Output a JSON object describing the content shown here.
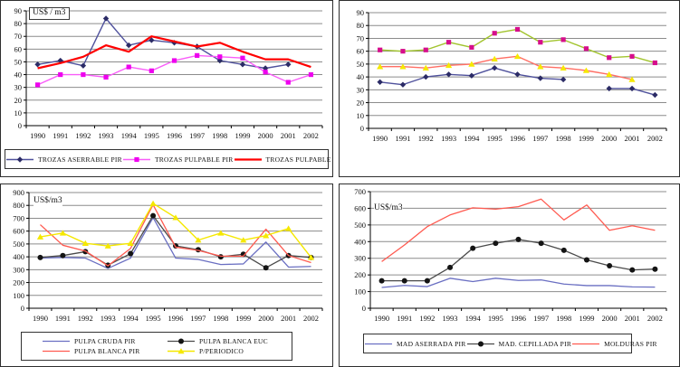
{
  "page": {
    "background": "#ffffff",
    "grid_color": "#8c8c8c",
    "axis_color": "#000000"
  },
  "chart_data": [
    {
      "id": "trozas",
      "type": "line",
      "unit_label": "US$ / m3",
      "categories": [
        "1990",
        "1991",
        "1992",
        "1993",
        "1994",
        "1995",
        "1996",
        "1997",
        "1998",
        "1999",
        "2000",
        "2001",
        "2002"
      ],
      "ylim": [
        0,
        90
      ],
      "ystep": 10,
      "grid": true,
      "legend_position": "bottom",
      "series": [
        {
          "name": "TROZAS ASERRABLE PIR",
          "line_color": "#4f519c",
          "line_width": 1.4,
          "marker": "diamond",
          "marker_color": "#2b2b66",
          "values": [
            48,
            51,
            47,
            84,
            63,
            67,
            65,
            62,
            51,
            48,
            45,
            48,
            null
          ]
        },
        {
          "name": "TROZAS PULPABLE PIR",
          "line_color": "#f95df9",
          "line_width": 1.4,
          "marker": "square",
          "marker_color": "#ee00ee",
          "values": [
            32,
            40,
            40,
            38,
            46,
            43,
            51,
            55,
            54,
            53,
            42,
            34,
            40
          ]
        },
        {
          "name": "TROZAS PULPABLE EUC",
          "line_color": "#ff0000",
          "line_width": 2.2,
          "marker": "none",
          "values": [
            45,
            49,
            54,
            63,
            58,
            70,
            66,
            62,
            65,
            58,
            52,
            52,
            46
          ]
        }
      ]
    },
    {
      "id": "top-right",
      "type": "line",
      "categories": [
        "1990",
        "1991",
        "1992",
        "1993",
        "1994",
        "1995",
        "1996",
        "1997",
        "1998",
        "1999",
        "2000",
        "2001",
        "2002"
      ],
      "ylim": [
        0,
        90
      ],
      "ystep": 10,
      "grid": true,
      "legend_position": "none",
      "series": [
        {
          "name": "",
          "line_color": "#a2c42e",
          "line_width": 1.4,
          "marker": "square",
          "marker_color": "#d60e8c",
          "values": [
            61,
            60,
            61,
            67,
            63,
            74,
            77,
            67,
            69,
            62,
            55,
            56,
            51
          ]
        },
        {
          "name": "",
          "line_color": "#ff6e64",
          "line_width": 1.4,
          "marker": "triangle",
          "marker_color": "#f5e800",
          "values": [
            48,
            48,
            47,
            49,
            50,
            54,
            56,
            48,
            47,
            45,
            42,
            38,
            null
          ]
        },
        {
          "name": "",
          "line_color": "#4f519c",
          "line_width": 1.4,
          "marker": "diamond",
          "marker_color": "#2b2b66",
          "values": [
            36,
            34,
            40,
            42,
            41,
            47,
            42,
            39,
            38,
            null,
            31,
            31,
            26
          ]
        }
      ]
    },
    {
      "id": "pulpa",
      "type": "line",
      "unit_label": "US$/m3",
      "categories": [
        "1990",
        "1991",
        "1992",
        "1993",
        "1994",
        "1995",
        "1996",
        "1997",
        "1998",
        "1999",
        "2000",
        "2001",
        "2002"
      ],
      "ylim": [
        0,
        900
      ],
      "ystep": 100,
      "grid": true,
      "legend_position": "bottom",
      "series": [
        {
          "name": "PULPA CRUDA PIR",
          "line_color": "#6a6fc2",
          "line_width": 1.3,
          "marker": "none",
          "values": [
            390,
            395,
            390,
            310,
            390,
            705,
            390,
            380,
            340,
            345,
            515,
            320,
            325
          ]
        },
        {
          "name": "PULPA BLANCA EUC",
          "line_color": "#4a4a4a",
          "line_width": 1.3,
          "marker": "circle",
          "marker_color": "#141414",
          "values": [
            395,
            410,
            440,
            335,
            425,
            720,
            485,
            455,
            400,
            420,
            315,
            410,
            395
          ]
        },
        {
          "name": "PULPA BLANCA PIR",
          "line_color": "#ff5a50",
          "line_width": 1.3,
          "marker": "none",
          "values": [
            650,
            490,
            445,
            330,
            465,
            805,
            475,
            450,
            405,
            405,
            615,
            410,
            355
          ]
        },
        {
          "name": "P/PERIODICO",
          "line_color": "#f5e800",
          "line_width": 1.4,
          "marker": "triangle",
          "marker_color": "#f5e800",
          "values": [
            555,
            585,
            505,
            485,
            505,
            815,
            705,
            530,
            585,
            530,
            565,
            620,
            395
          ]
        }
      ]
    },
    {
      "id": "madera",
      "type": "line",
      "unit_label": "US$/m3",
      "categories": [
        "1990",
        "1991",
        "1992",
        "1993",
        "1994",
        "1995",
        "1996",
        "1997",
        "1998",
        "1999",
        "2000",
        "2001",
        "2002"
      ],
      "ylim": [
        0,
        700
      ],
      "ystep": 100,
      "grid": true,
      "legend_position": "bottom",
      "series": [
        {
          "name": "MAD ASERRADA PIR",
          "line_color": "#6a6fc2",
          "line_width": 1.3,
          "marker": "none",
          "values": [
            125,
            137,
            130,
            180,
            160,
            180,
            167,
            170,
            145,
            136,
            136,
            128,
            127
          ]
        },
        {
          "name": "MAD. CEPILLADA PIR",
          "line_color": "#4a4a4a",
          "line_width": 1.3,
          "marker": "circle",
          "marker_color": "#141414",
          "values": [
            165,
            165,
            165,
            245,
            360,
            390,
            413,
            390,
            348,
            290,
            255,
            230,
            235
          ]
        },
        {
          "name": "MOLDURAS PIR",
          "line_color": "#ff5a50",
          "line_width": 1.3,
          "marker": "none",
          "values": [
            280,
            380,
            490,
            560,
            603,
            595,
            610,
            655,
            530,
            620,
            468,
            495,
            468
          ]
        }
      ]
    }
  ]
}
